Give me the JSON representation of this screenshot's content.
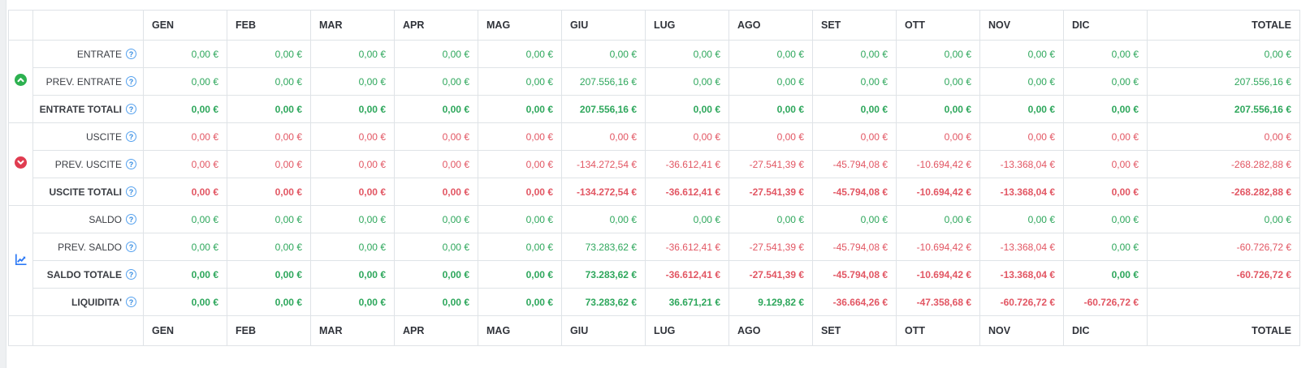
{
  "colors": {
    "positive": "#2ea75c",
    "negative": "#e25663",
    "header_text": "#30333a",
    "label_text": "#3b3e44",
    "border": "#dfe3e7",
    "entrate_icon_green": "#2db150",
    "uscite_icon_red": "#e03c50",
    "saldo_icon_blue": "#2e7af5",
    "help_icon_blue": "#2f88e0"
  },
  "table": {
    "months": [
      "GEN",
      "FEB",
      "MAR",
      "APR",
      "MAG",
      "GIU",
      "LUG",
      "AGO",
      "SET",
      "OTT",
      "NOV",
      "DIC"
    ],
    "totale_label": "TOTALE",
    "help_glyph": "?",
    "groups": [
      {
        "name": "entrate",
        "icon": "circle-chevron-up-icon",
        "icon_color": "#2db150",
        "rows": [
          {
            "label": "ENTRATE",
            "bold": false,
            "color": "green",
            "cells": [
              "0,00 €",
              "0,00 €",
              "0,00 €",
              "0,00 €",
              "0,00 €",
              "0,00 €",
              "0,00 €",
              "0,00 €",
              "0,00 €",
              "0,00 €",
              "0,00 €",
              "0,00 €",
              "0,00 €"
            ]
          },
          {
            "label": "PREV. ENTRATE",
            "bold": false,
            "color": "green",
            "cells": [
              "0,00 €",
              "0,00 €",
              "0,00 €",
              "0,00 €",
              "0,00 €",
              "207.556,16 €",
              "0,00 €",
              "0,00 €",
              "0,00 €",
              "0,00 €",
              "0,00 €",
              "0,00 €",
              "207.556,16 €"
            ]
          },
          {
            "label": "ENTRATE TOTALI",
            "bold": true,
            "color": "green",
            "cells": [
              "0,00 €",
              "0,00 €",
              "0,00 €",
              "0,00 €",
              "0,00 €",
              "207.556,16 €",
              "0,00 €",
              "0,00 €",
              "0,00 €",
              "0,00 €",
              "0,00 €",
              "0,00 €",
              "207.556,16 €"
            ]
          }
        ]
      },
      {
        "name": "uscite",
        "icon": "circle-chevron-down-icon",
        "icon_color": "#e03c50",
        "rows": [
          {
            "label": "USCITE",
            "bold": false,
            "color": "red",
            "cells": [
              "0,00 €",
              "0,00 €",
              "0,00 €",
              "0,00 €",
              "0,00 €",
              "0,00 €",
              "0,00 €",
              "0,00 €",
              "0,00 €",
              "0,00 €",
              "0,00 €",
              "0,00 €",
              "0,00 €"
            ]
          },
          {
            "label": "PREV. USCITE",
            "bold": false,
            "color": "red",
            "cells": [
              "0,00 €",
              "0,00 €",
              "0,00 €",
              "0,00 €",
              "0,00 €",
              "-134.272,54 €",
              "-36.612,41 €",
              "-27.541,39 €",
              "-45.794,08 €",
              "-10.694,42 €",
              "-13.368,04 €",
              "0,00 €",
              "-268.282,88 €"
            ]
          },
          {
            "label": "USCITE TOTALI",
            "bold": true,
            "color": "red",
            "cells": [
              "0,00 €",
              "0,00 €",
              "0,00 €",
              "0,00 €",
              "0,00 €",
              "-134.272,54 €",
              "-36.612,41 €",
              "-27.541,39 €",
              "-45.794,08 €",
              "-10.694,42 €",
              "-13.368,04 €",
              "0,00 €",
              "-268.282,88 €"
            ]
          }
        ]
      },
      {
        "name": "saldo",
        "icon": "line-chart-icon",
        "icon_color": "#2e7af5",
        "rows": [
          {
            "label": "SALDO",
            "bold": false,
            "color": "auto",
            "cells": [
              "0,00 €",
              "0,00 €",
              "0,00 €",
              "0,00 €",
              "0,00 €",
              "0,00 €",
              "0,00 €",
              "0,00 €",
              "0,00 €",
              "0,00 €",
              "0,00 €",
              "0,00 €",
              "0,00 €"
            ]
          },
          {
            "label": "PREV. SALDO",
            "bold": false,
            "color": "auto",
            "cells": [
              "0,00 €",
              "0,00 €",
              "0,00 €",
              "0,00 €",
              "0,00 €",
              "73.283,62 €",
              "-36.612,41 €",
              "-27.541,39 €",
              "-45.794,08 €",
              "-10.694,42 €",
              "-13.368,04 €",
              "0,00 €",
              "-60.726,72 €"
            ]
          },
          {
            "label": "SALDO TOTALE",
            "bold": true,
            "color": "auto",
            "cells": [
              "0,00 €",
              "0,00 €",
              "0,00 €",
              "0,00 €",
              "0,00 €",
              "73.283,62 €",
              "-36.612,41 €",
              "-27.541,39 €",
              "-45.794,08 €",
              "-10.694,42 €",
              "-13.368,04 €",
              "0,00 €",
              "-60.726,72 €"
            ]
          },
          {
            "label": "LIQUIDITA'",
            "bold": true,
            "color": "auto",
            "cells": [
              "0,00 €",
              "0,00 €",
              "0,00 €",
              "0,00 €",
              "0,00 €",
              "73.283,62 €",
              "36.671,21 €",
              "9.129,82 €",
              "-36.664,26 €",
              "-47.358,68 €",
              "-60.726,72 €",
              "-60.726,72 €",
              ""
            ]
          }
        ]
      }
    ]
  }
}
